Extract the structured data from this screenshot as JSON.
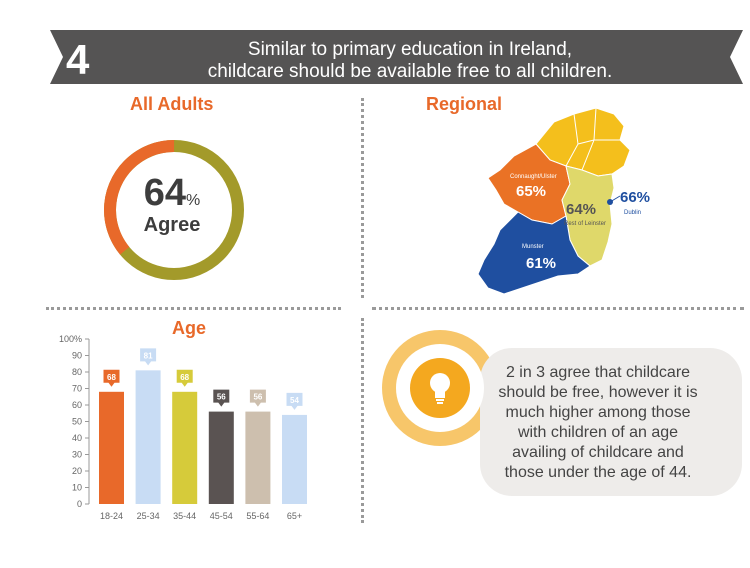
{
  "question": {
    "number": "4",
    "line1": "Similar to primary education in Ireland,",
    "line2": "childcare should be available free to all children."
  },
  "colors": {
    "banner": "#555454",
    "accent_orange": "#e8692a",
    "olive": "#a39a2a",
    "green_yellow": "#c8c43a",
    "map_orange": "#ea7225",
    "map_yellow": "#f4bf1c",
    "map_lightgreen": "#dfd86a",
    "map_blue": "#1f4fa0"
  },
  "all_adults": {
    "title": "All Adults",
    "value": "64",
    "percent_sign": "%",
    "label": "Agree",
    "agree_fraction": 0.64
  },
  "regional": {
    "title": "Regional",
    "regions": [
      {
        "name": "Connaught/Ulster",
        "value": "65%"
      },
      {
        "name": "Rest of Leinster",
        "value": "64%"
      },
      {
        "name": "Dublin",
        "value": "66%"
      },
      {
        "name": "Munster",
        "value": "61%"
      }
    ]
  },
  "chart_data": {
    "type": "bar",
    "title": "Age",
    "categories": [
      "18-24",
      "25-34",
      "35-44",
      "45-54",
      "55-64",
      "65+"
    ],
    "values": [
      68,
      81,
      68,
      56,
      56,
      54
    ],
    "value_labels": [
      "68",
      "81",
      "68",
      "56",
      "56",
      "54"
    ],
    "bar_colors": [
      "#e8692a",
      "#c8dcf4",
      "#d6cb3a",
      "#5a5352",
      "#cdbfae",
      "#c8dcf4"
    ],
    "label_text_colors": [
      "#ffffff",
      "#ffffff",
      "#ffffff",
      "#ffffff",
      "#ffffff",
      "#ffffff"
    ],
    "ylim": [
      0,
      100
    ],
    "y_ticks": [
      "0",
      "10",
      "20",
      "30",
      "40",
      "50",
      "60",
      "70",
      "80",
      "90",
      "100%"
    ],
    "grid": false
  },
  "callout": {
    "icon": "lightbulb-icon",
    "text": "2 in 3 agree that childcare should be free, however it is much higher among those with children of an age availing of childcare and those under the age of 44."
  }
}
